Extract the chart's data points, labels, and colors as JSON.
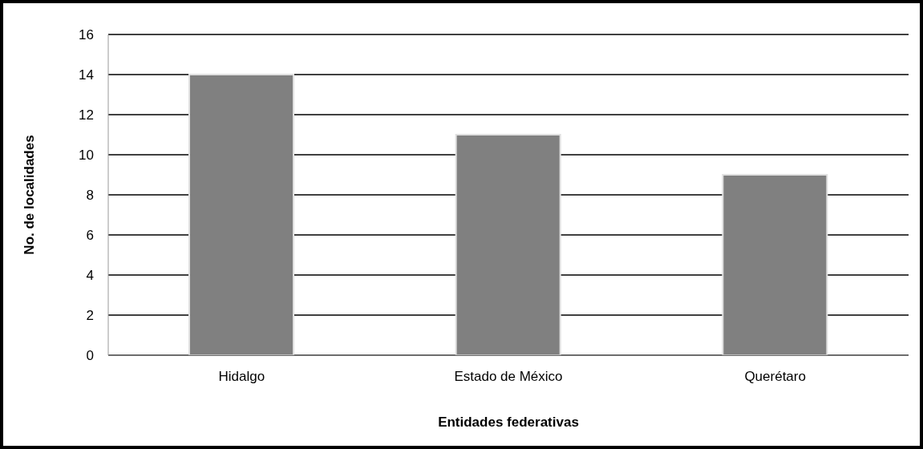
{
  "chart_data": {
    "type": "bar",
    "xlabel": "Entidades federativas",
    "ylabel": "No. de localidades",
    "categories": [
      "Hidalgo",
      "Estado de México",
      "Querétaro"
    ],
    "values": [
      14,
      11,
      9
    ],
    "color": "#808080",
    "ylim": [
      0,
      16
    ],
    "yticks": [
      0,
      2,
      4,
      6,
      8,
      10,
      12,
      14,
      16
    ],
    "grid": "y"
  }
}
